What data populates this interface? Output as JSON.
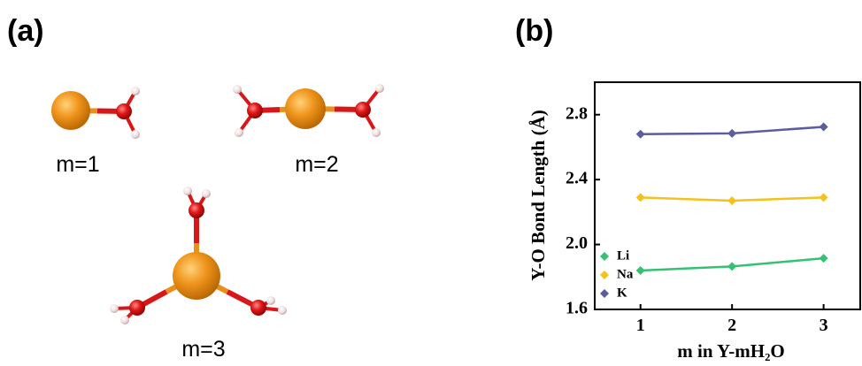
{
  "panel_labels": [
    "(a)",
    "(b)"
  ],
  "molecules": [
    {
      "label": "m=1"
    },
    {
      "label": "m=2"
    },
    {
      "label": "m=3"
    }
  ],
  "chart_data": {
    "type": "line",
    "x_label": "m in Y-mH₂O",
    "y_label": "Y-O Bond Length (Å)",
    "x": [
      1,
      2,
      3
    ],
    "xlim": [
      0.5,
      3.4
    ],
    "xticks": [
      1,
      2,
      3
    ],
    "ylim": [
      1.6,
      3.0
    ],
    "yticks": [
      {
        "value": 1.6,
        "label": "1.6"
      },
      {
        "value": 2.0,
        "label": "2.0"
      },
      2.4,
      2.8
    ],
    "grid": false,
    "legend": "lower left",
    "series": [
      {
        "name": "Li",
        "color": "#35c172",
        "values": [
          1.84,
          1.865,
          1.915
        ]
      },
      {
        "name": "Na",
        "color": "#f5c21b",
        "values": [
          2.29,
          2.27,
          2.29
        ]
      },
      {
        "name": "K",
        "color": "#5b5d9c",
        "values": [
          2.68,
          2.685,
          2.725
        ]
      }
    ]
  }
}
